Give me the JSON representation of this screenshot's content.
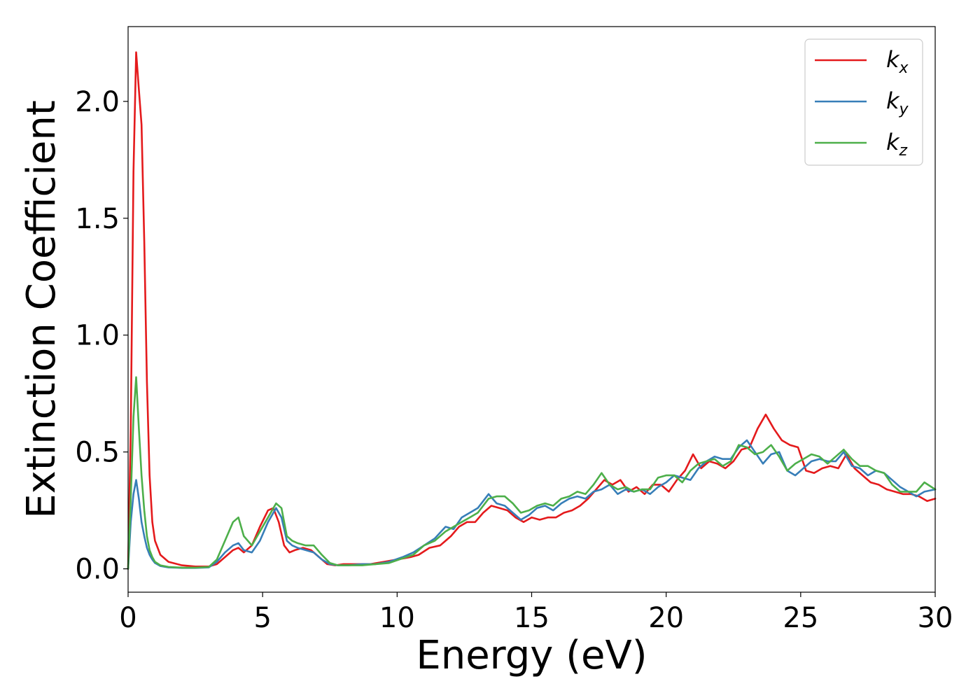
{
  "chart_data": {
    "type": "line",
    "title": "",
    "xlabel": "Energy (eV)",
    "ylabel": "Extinction Coefficient",
    "xlim": [
      0,
      30
    ],
    "ylim": [
      -0.1,
      2.32
    ],
    "xticks": [
      0,
      5,
      10,
      15,
      20,
      25,
      30
    ],
    "xtick_labels": [
      "0",
      "5",
      "10",
      "15",
      "20",
      "25",
      "30"
    ],
    "yticks": [
      0.0,
      0.5,
      1.0,
      1.5,
      2.0
    ],
    "ytick_labels": [
      "0.0",
      "0.5",
      "1.0",
      "1.5",
      "2.0"
    ],
    "grid": false,
    "legend_position": "top-right",
    "series": [
      {
        "name": "k_x",
        "label_main": "k",
        "label_sub": "x",
        "color": "#e41a1c",
        "x": [
          0,
          0.1,
          0.2,
          0.3,
          0.4,
          0.5,
          0.6,
          0.7,
          0.8,
          0.9,
          1.0,
          1.2,
          1.5,
          2.0,
          2.5,
          3.0,
          3.3,
          3.6,
          3.9,
          4.1,
          4.3,
          4.6,
          4.9,
          5.2,
          5.4,
          5.6,
          5.8,
          6.0,
          6.2,
          6.5,
          6.8,
          7.1,
          7.4,
          7.7,
          8.0,
          8.5,
          9.0,
          9.5,
          10.0,
          10.5,
          10.8,
          11.2,
          11.6,
          12.0,
          12.3,
          12.6,
          12.9,
          13.2,
          13.5,
          13.8,
          14.1,
          14.4,
          14.7,
          15.0,
          15.3,
          15.6,
          15.9,
          16.2,
          16.5,
          16.8,
          17.1,
          17.4,
          17.7,
          18.0,
          18.3,
          18.6,
          18.9,
          19.2,
          19.5,
          19.8,
          20.1,
          20.4,
          20.7,
          21.0,
          21.3,
          21.6,
          21.9,
          22.2,
          22.5,
          22.8,
          23.1,
          23.4,
          23.7,
          24.0,
          24.3,
          24.6,
          24.9,
          25.2,
          25.5,
          25.8,
          26.1,
          26.4,
          26.7,
          27.0,
          27.3,
          27.6,
          27.9,
          28.2,
          28.5,
          28.8,
          29.1,
          29.4,
          29.7,
          30.0
        ],
        "y": [
          0.0,
          0.6,
          1.7,
          2.21,
          2.05,
          1.9,
          1.4,
          0.8,
          0.4,
          0.2,
          0.12,
          0.06,
          0.03,
          0.015,
          0.01,
          0.01,
          0.02,
          0.05,
          0.08,
          0.09,
          0.07,
          0.1,
          0.18,
          0.25,
          0.26,
          0.2,
          0.1,
          0.07,
          0.08,
          0.09,
          0.08,
          0.05,
          0.02,
          0.015,
          0.02,
          0.02,
          0.02,
          0.03,
          0.04,
          0.05,
          0.06,
          0.09,
          0.1,
          0.14,
          0.18,
          0.2,
          0.2,
          0.24,
          0.27,
          0.26,
          0.25,
          0.22,
          0.2,
          0.22,
          0.21,
          0.22,
          0.22,
          0.24,
          0.25,
          0.27,
          0.3,
          0.34,
          0.38,
          0.36,
          0.38,
          0.33,
          0.35,
          0.32,
          0.36,
          0.36,
          0.33,
          0.38,
          0.42,
          0.49,
          0.43,
          0.46,
          0.45,
          0.43,
          0.46,
          0.51,
          0.52,
          0.6,
          0.66,
          0.6,
          0.55,
          0.53,
          0.52,
          0.42,
          0.41,
          0.43,
          0.44,
          0.43,
          0.49,
          0.43,
          0.4,
          0.37,
          0.36,
          0.34,
          0.33,
          0.32,
          0.32,
          0.31,
          0.29,
          0.3
        ]
      },
      {
        "name": "k_y",
        "label_main": "k",
        "label_sub": "y",
        "color": "#377eb8",
        "x": [
          0,
          0.1,
          0.2,
          0.3,
          0.4,
          0.5,
          0.6,
          0.7,
          0.8,
          0.9,
          1.0,
          1.2,
          1.5,
          2.0,
          2.5,
          3.0,
          3.3,
          3.6,
          3.9,
          4.1,
          4.3,
          4.6,
          4.9,
          5.2,
          5.5,
          5.7,
          5.9,
          6.1,
          6.3,
          6.6,
          6.9,
          7.2,
          7.5,
          7.8,
          8.2,
          8.7,
          9.2,
          9.7,
          10.2,
          10.6,
          11.0,
          11.4,
          11.8,
          12.1,
          12.4,
          12.7,
          13.0,
          13.4,
          13.7,
          14.0,
          14.3,
          14.6,
          14.9,
          15.2,
          15.5,
          15.8,
          16.1,
          16.4,
          16.7,
          17.0,
          17.3,
          17.6,
          17.9,
          18.2,
          18.5,
          18.8,
          19.1,
          19.4,
          19.7,
          20.0,
          20.3,
          20.6,
          20.9,
          21.2,
          21.5,
          21.8,
          22.1,
          22.4,
          22.7,
          23.0,
          23.3,
          23.6,
          23.9,
          24.2,
          24.5,
          24.8,
          25.1,
          25.4,
          25.7,
          26.0,
          26.3,
          26.6,
          26.9,
          27.2,
          27.5,
          27.8,
          28.1,
          28.4,
          28.7,
          29.0,
          29.3,
          29.6,
          30.0
        ],
        "y": [
          0.0,
          0.2,
          0.32,
          0.38,
          0.3,
          0.2,
          0.14,
          0.09,
          0.06,
          0.04,
          0.025,
          0.012,
          0.006,
          0.004,
          0.004,
          0.006,
          0.03,
          0.07,
          0.1,
          0.11,
          0.08,
          0.07,
          0.12,
          0.2,
          0.26,
          0.22,
          0.12,
          0.1,
          0.09,
          0.08,
          0.07,
          0.04,
          0.02,
          0.015,
          0.015,
          0.02,
          0.02,
          0.03,
          0.05,
          0.07,
          0.1,
          0.13,
          0.18,
          0.17,
          0.22,
          0.24,
          0.26,
          0.32,
          0.28,
          0.27,
          0.24,
          0.21,
          0.23,
          0.26,
          0.27,
          0.25,
          0.28,
          0.3,
          0.31,
          0.3,
          0.33,
          0.34,
          0.36,
          0.32,
          0.34,
          0.33,
          0.34,
          0.32,
          0.35,
          0.37,
          0.4,
          0.39,
          0.38,
          0.43,
          0.46,
          0.48,
          0.47,
          0.47,
          0.52,
          0.55,
          0.5,
          0.45,
          0.49,
          0.5,
          0.42,
          0.4,
          0.43,
          0.46,
          0.47,
          0.46,
          0.46,
          0.5,
          0.44,
          0.43,
          0.4,
          0.42,
          0.41,
          0.38,
          0.35,
          0.33,
          0.31,
          0.33,
          0.34
        ]
      },
      {
        "name": "k_z",
        "label_main": "k",
        "label_sub": "z",
        "color": "#4daf4a",
        "x": [
          0,
          0.1,
          0.2,
          0.3,
          0.4,
          0.5,
          0.6,
          0.7,
          0.8,
          0.9,
          1.0,
          1.2,
          1.5,
          2.0,
          2.5,
          3.0,
          3.3,
          3.6,
          3.9,
          4.1,
          4.3,
          4.6,
          4.9,
          5.2,
          5.5,
          5.7,
          5.9,
          6.1,
          6.3,
          6.6,
          6.9,
          7.2,
          7.5,
          7.8,
          8.2,
          8.7,
          9.2,
          9.7,
          10.2,
          10.6,
          11.0,
          11.4,
          11.8,
          12.1,
          12.4,
          12.7,
          13.0,
          13.4,
          13.7,
          14.0,
          14.3,
          14.6,
          14.9,
          15.2,
          15.5,
          15.8,
          16.1,
          16.4,
          16.7,
          17.0,
          17.3,
          17.6,
          17.9,
          18.2,
          18.5,
          18.8,
          19.1,
          19.4,
          19.7,
          20.0,
          20.3,
          20.6,
          20.9,
          21.2,
          21.5,
          21.8,
          22.1,
          22.4,
          22.7,
          23.0,
          23.3,
          23.6,
          23.9,
          24.2,
          24.5,
          24.8,
          25.1,
          25.4,
          25.7,
          26.0,
          26.3,
          26.6,
          26.9,
          27.2,
          27.5,
          27.8,
          28.1,
          28.4,
          28.7,
          29.0,
          29.3,
          29.6,
          30.0
        ],
        "y": [
          0.0,
          0.3,
          0.65,
          0.82,
          0.6,
          0.4,
          0.25,
          0.14,
          0.08,
          0.05,
          0.03,
          0.015,
          0.008,
          0.005,
          0.005,
          0.008,
          0.04,
          0.12,
          0.2,
          0.22,
          0.14,
          0.1,
          0.16,
          0.22,
          0.28,
          0.26,
          0.14,
          0.12,
          0.11,
          0.1,
          0.1,
          0.06,
          0.025,
          0.015,
          0.015,
          0.015,
          0.02,
          0.025,
          0.045,
          0.06,
          0.1,
          0.12,
          0.16,
          0.18,
          0.2,
          0.22,
          0.24,
          0.3,
          0.31,
          0.31,
          0.28,
          0.24,
          0.25,
          0.27,
          0.28,
          0.27,
          0.3,
          0.31,
          0.33,
          0.32,
          0.36,
          0.41,
          0.36,
          0.34,
          0.35,
          0.33,
          0.34,
          0.34,
          0.39,
          0.4,
          0.4,
          0.37,
          0.42,
          0.45,
          0.46,
          0.47,
          0.44,
          0.46,
          0.53,
          0.52,
          0.49,
          0.5,
          0.53,
          0.48,
          0.42,
          0.45,
          0.47,
          0.49,
          0.48,
          0.45,
          0.48,
          0.51,
          0.47,
          0.44,
          0.44,
          0.42,
          0.41,
          0.36,
          0.33,
          0.33,
          0.33,
          0.37,
          0.34
        ]
      }
    ]
  }
}
